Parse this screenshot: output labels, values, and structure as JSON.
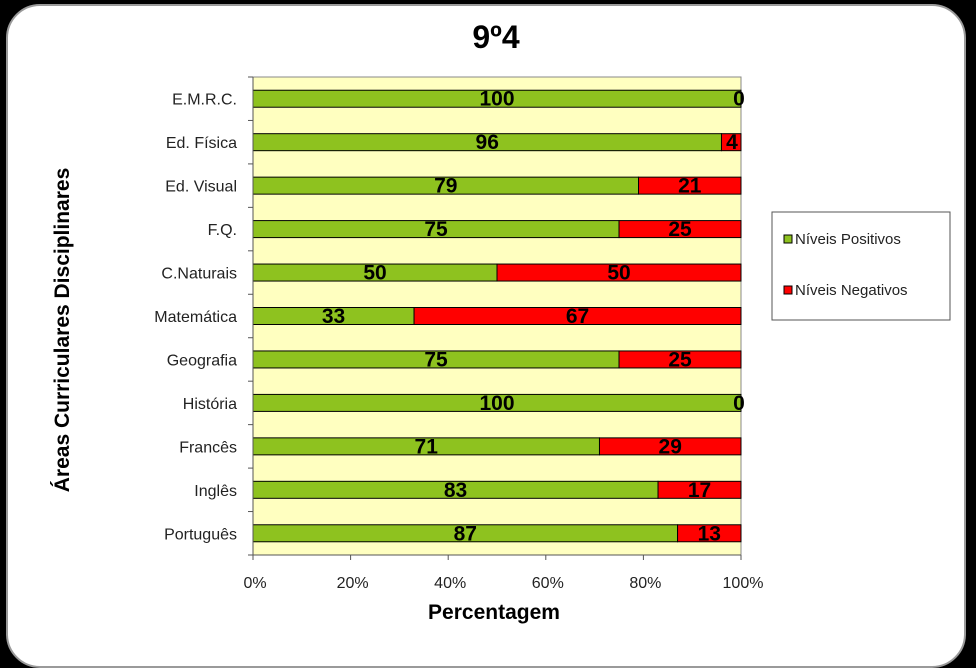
{
  "chart_data": {
    "type": "bar",
    "orientation": "horizontal",
    "stacked": "percent",
    "title": "9º4",
    "xlabel": "Percentagem",
    "ylabel": "Áreas Curriculares Disciplinares",
    "xlim": [
      0,
      100
    ],
    "xticks": [
      "0%",
      "20%",
      "40%",
      "60%",
      "80%",
      "100%"
    ],
    "categories": [
      "E.M.R.C.",
      "Ed. Física",
      "Ed. Visual",
      "F.Q.",
      "C.Naturais",
      "Matemática",
      "Geografia",
      "História",
      "Francês",
      "Inglês",
      "Português"
    ],
    "series": [
      {
        "name": "Níveis Positivos",
        "color": "#8ec21f",
        "values": [
          100,
          96,
          79,
          75,
          50,
          33,
          75,
          100,
          71,
          83,
          87
        ]
      },
      {
        "name": "Níveis Negativos",
        "color": "#ff0000",
        "values": [
          0,
          4,
          21,
          25,
          50,
          67,
          25,
          0,
          29,
          17,
          13
        ]
      }
    ],
    "plot_background": "#ffffc0",
    "legend_position": "right",
    "grid": false
  }
}
